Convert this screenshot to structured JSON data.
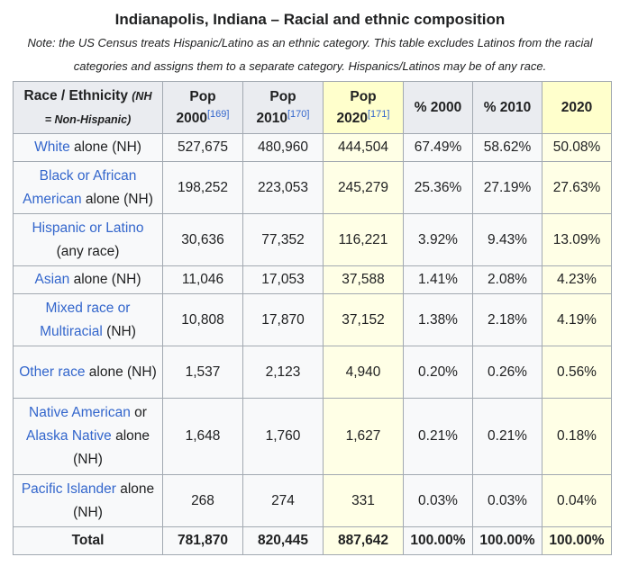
{
  "caption": "Indianapolis, Indiana – Racial and ethnic composition",
  "note": "Note: the US Census treats Hispanic/Latino as an ethnic category. This table excludes Latinos from the racial categories and assigns them to a separate category. Hispanics/Latinos may be of any race.",
  "header": {
    "race_label": "Race / Ethnicity",
    "race_note_a": "(NH",
    "race_note_b": "= Non-Hispanic)",
    "pop2000": "Pop",
    "pop2000_year": "2000",
    "pop2000_ref": "[169]",
    "pop2010": "Pop",
    "pop2010_year": "2010",
    "pop2010_ref": "[170]",
    "pop2020": "Pop",
    "pop2020_year": "2020",
    "pop2020_ref": "[171]",
    "pct2000": "% 2000",
    "pct2010": "% 2010",
    "pct2020": "2020"
  },
  "rows": [
    {
      "link1": "White",
      "plain1": " alone (NH)",
      "link2": "",
      "plain2": "",
      "p2000": "527,675",
      "p2010": "480,960",
      "p2020": "444,504",
      "c2000": "67.49%",
      "c2010": "58.62%",
      "c2020": "50.08%"
    },
    {
      "link1": "Black or African American",
      "plain1": " alone (NH)",
      "link2": "",
      "plain2": "",
      "p2000": "198,252",
      "p2010": "223,053",
      "p2020": "245,279",
      "c2000": "25.36%",
      "c2010": "27.19%",
      "c2020": "27.63%"
    },
    {
      "link1": "Hispanic or Latino",
      "plain1": " (any race)",
      "link2": "",
      "plain2": "",
      "p2000": "30,636",
      "p2010": "77,352",
      "p2020": "116,221",
      "c2000": "3.92%",
      "c2010": "9.43%",
      "c2020": "13.09%"
    },
    {
      "link1": "Asian",
      "plain1": " alone (NH)",
      "link2": "",
      "plain2": "",
      "p2000": "11,046",
      "p2010": "17,053",
      "p2020": "37,588",
      "c2000": "1.41%",
      "c2010": "2.08%",
      "c2020": "4.23%"
    },
    {
      "link1": "Mixed race or Multiracial",
      "plain1": " (NH)",
      "link2": "",
      "plain2": "",
      "p2000": "10,808",
      "p2010": "17,870",
      "p2020": "37,152",
      "c2000": "1.38%",
      "c2010": "2.18%",
      "c2020": "4.19%"
    },
    {
      "link1": "Other race",
      "plain1": " alone (NH)",
      "link2": "",
      "plain2": "",
      "p2000": "1,537",
      "p2010": "2,123",
      "p2020": "4,940",
      "c2000": "0.20%",
      "c2010": "0.26%",
      "c2020": "0.56%"
    },
    {
      "link1": "Native American",
      "plain1": " or ",
      "link2": "Alaska Native",
      "plain2": " alone (NH)",
      "p2000": "1,648",
      "p2010": "1,760",
      "p2020": "1,627",
      "c2000": "0.21%",
      "c2010": "0.21%",
      "c2020": "0.18%"
    },
    {
      "link1": "Pacific Islander",
      "plain1": " alone (NH)",
      "link2": "",
      "plain2": "",
      "p2000": "268",
      "p2010": "274",
      "p2020": "331",
      "c2000": "0.03%",
      "c2010": "0.03%",
      "c2020": "0.04%"
    }
  ],
  "total": {
    "label": "Total",
    "p2000": "781,870",
    "p2010": "820,445",
    "p2020": "887,642",
    "c2000": "100.00%",
    "c2010": "100.00%",
    "c2020": "100.00%"
  },
  "colors": {
    "link": "#3366cc",
    "header_bg": "#eaecf0",
    "highlight_2020": "#ffffcc",
    "border": "#a2a9b1"
  }
}
